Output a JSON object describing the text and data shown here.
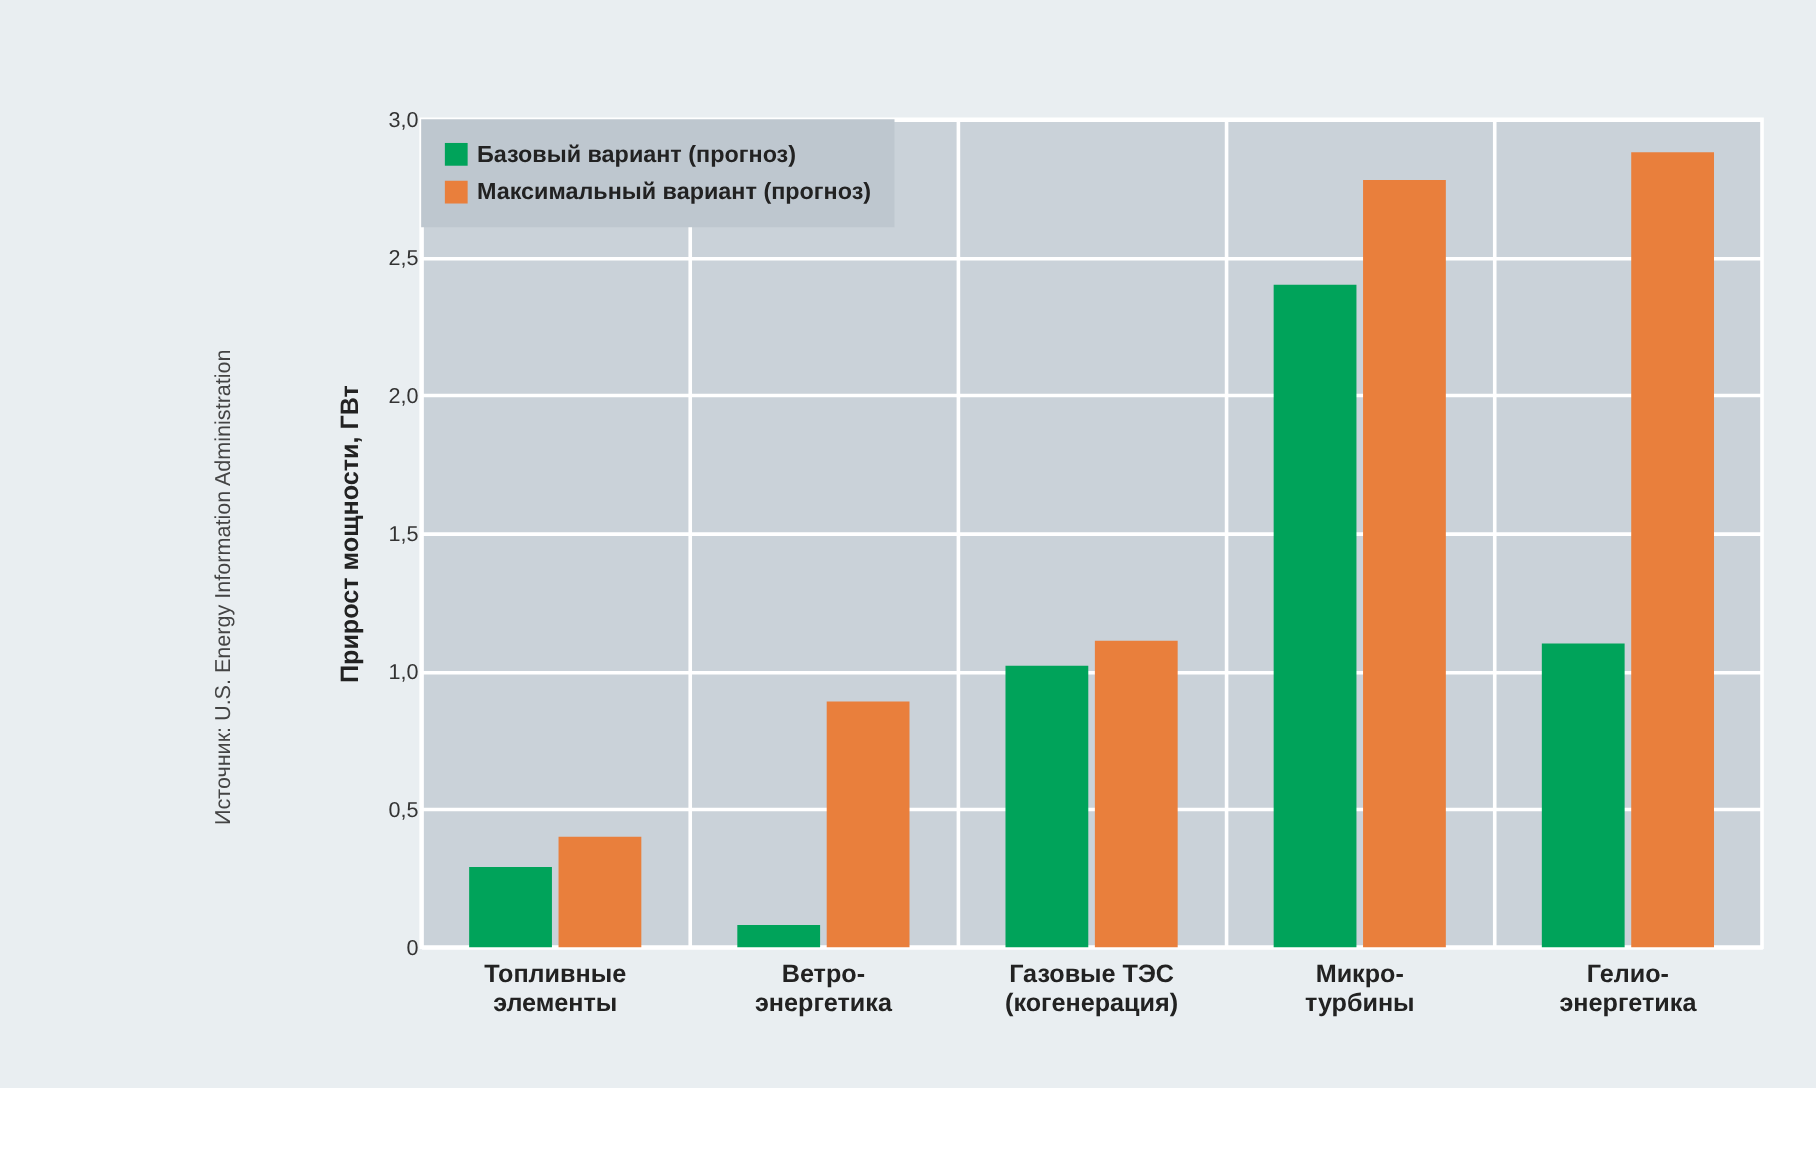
{
  "chart_data": {
    "type": "bar",
    "ylabel": "Прирост мощности, ГВт",
    "categories": [
      "Топливные\nэлементы",
      "Ветро-\nэнергетика",
      "Газовые ТЭС\n(когенерация)",
      "Микро-\nтурбины",
      "Гелио-\nэнергетика"
    ],
    "series": [
      {
        "name": "Базовый вариант (прогноз)",
        "color": "#00a35a",
        "values": [
          0.29,
          0.08,
          1.02,
          2.4,
          1.1
        ]
      },
      {
        "name": "Максимальный вариант (прогноз)",
        "color": "#e97f3c",
        "values": [
          0.4,
          0.89,
          1.11,
          2.78,
          2.88
        ]
      }
    ],
    "ylim": [
      0,
      3.0
    ],
    "yticks": [
      0,
      {
        "value": 0.5,
        "label": "0,5"
      },
      {
        "value": 1.0,
        "label": "1,0"
      },
      {
        "value": 1.5,
        "label": "1,5"
      },
      {
        "value": 2.0,
        "label": "2,0"
      },
      {
        "value": 2.5,
        "label": "2,5"
      },
      {
        "value": 3.0,
        "label": "3,0"
      }
    ],
    "grid": true,
    "legend": "top left",
    "annotations": [
      "Источник: U.S. Energy Information Administration"
    ]
  }
}
